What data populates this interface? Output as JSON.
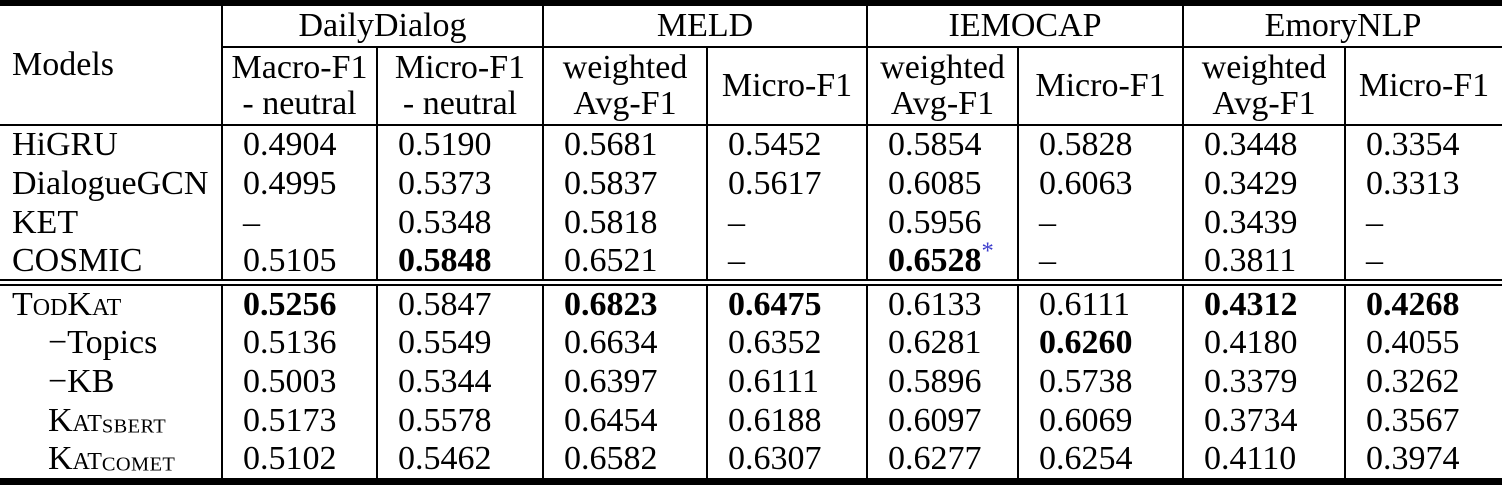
{
  "table": {
    "corner_header": "Models",
    "colors": {
      "text": "#000000",
      "background": "#ffffff",
      "footnote_marker": "#3d3dcd"
    },
    "groups": [
      {
        "label": "DailyDialog",
        "columns": [
          [
            "Macro-F1",
            "- neutral"
          ],
          [
            "Micro-F1",
            "- neutral"
          ]
        ]
      },
      {
        "label": "MELD",
        "columns": [
          [
            "weighted",
            "Avg-F1"
          ],
          [
            "Micro-F1"
          ]
        ]
      },
      {
        "label": "IEMOCAP",
        "columns": [
          [
            "weighted",
            "Avg-F1"
          ],
          [
            "Micro-F1"
          ]
        ]
      },
      {
        "label": "EmoryNLP",
        "columns": [
          [
            "weighted",
            "Avg-F1"
          ],
          [
            "Micro-F1"
          ]
        ]
      }
    ],
    "sections": [
      {
        "name": "baselines",
        "rows": [
          {
            "model": {
              "text": "HiGRU"
            },
            "cells": [
              {
                "t": "0.4904"
              },
              {
                "t": "0.5190"
              },
              {
                "t": "0.5681"
              },
              {
                "t": "0.5452"
              },
              {
                "t": "0.5854"
              },
              {
                "t": "0.5828"
              },
              {
                "t": "0.3448"
              },
              {
                "t": "0.3354"
              }
            ]
          },
          {
            "model": {
              "text": "DialogueGCN"
            },
            "cells": [
              {
                "t": "0.4995"
              },
              {
                "t": "0.5373"
              },
              {
                "t": "0.5837"
              },
              {
                "t": "0.5617"
              },
              {
                "t": "0.6085"
              },
              {
                "t": "0.6063"
              },
              {
                "t": "0.3429"
              },
              {
                "t": "0.3313"
              }
            ]
          },
          {
            "model": {
              "text": "KET"
            },
            "cells": [
              {
                "t": "–"
              },
              {
                "t": "0.5348"
              },
              {
                "t": "0.5818"
              },
              {
                "t": "–"
              },
              {
                "t": "0.5956"
              },
              {
                "t": "–"
              },
              {
                "t": "0.3439"
              },
              {
                "t": "–"
              }
            ]
          },
          {
            "model": {
              "text": "COSMIC"
            },
            "cells": [
              {
                "t": "0.5105"
              },
              {
                "t": "0.5848",
                "bold": true
              },
              {
                "t": "0.6521"
              },
              {
                "t": "–"
              },
              {
                "t": "0.6528",
                "bold": true,
                "sup": "*"
              },
              {
                "t": "–"
              },
              {
                "t": "0.3811"
              },
              {
                "t": "–"
              }
            ]
          }
        ]
      },
      {
        "name": "todkat-variants",
        "rows": [
          {
            "model": {
              "text": "TodKat",
              "smallcaps": true
            },
            "cells": [
              {
                "t": "0.5256",
                "bold": true
              },
              {
                "t": "0.5847"
              },
              {
                "t": "0.6823",
                "bold": true
              },
              {
                "t": "0.6475",
                "bold": true
              },
              {
                "t": "0.6133"
              },
              {
                "t": "0.6111"
              },
              {
                "t": "0.4312",
                "bold": true
              },
              {
                "t": "0.4268",
                "bold": true
              }
            ]
          },
          {
            "model": {
              "text": "−Topics",
              "indent": true
            },
            "cells": [
              {
                "t": "0.5136"
              },
              {
                "t": "0.5549"
              },
              {
                "t": "0.6634"
              },
              {
                "t": "0.6352"
              },
              {
                "t": "0.6281"
              },
              {
                "t": "0.6260",
                "bold": true
              },
              {
                "t": "0.4180"
              },
              {
                "t": "0.4055"
              }
            ]
          },
          {
            "model": {
              "text": "−KB",
              "indent": true
            },
            "cells": [
              {
                "t": "0.5003"
              },
              {
                "t": "0.5344"
              },
              {
                "t": "0.6397"
              },
              {
                "t": "0.6111"
              },
              {
                "t": "0.5896"
              },
              {
                "t": "0.5738"
              },
              {
                "t": "0.3379"
              },
              {
                "t": "0.3262"
              }
            ]
          },
          {
            "model": {
              "text": "Kat",
              "smallcaps": true,
              "subscript": "SBERT",
              "indent": true
            },
            "cells": [
              {
                "t": "0.5173"
              },
              {
                "t": "0.5578"
              },
              {
                "t": "0.6454"
              },
              {
                "t": "0.6188"
              },
              {
                "t": "0.6097"
              },
              {
                "t": "0.6069"
              },
              {
                "t": "0.3734"
              },
              {
                "t": "0.3567"
              }
            ]
          },
          {
            "model": {
              "text": "Kat",
              "smallcaps": true,
              "subscript": "COMET",
              "indent": true
            },
            "cells": [
              {
                "t": "0.5102"
              },
              {
                "t": "0.5462"
              },
              {
                "t": "0.6582"
              },
              {
                "t": "0.6307"
              },
              {
                "t": "0.6277"
              },
              {
                "t": "0.6254"
              },
              {
                "t": "0.4110"
              },
              {
                "t": "0.3974"
              }
            ]
          }
        ]
      }
    ]
  }
}
